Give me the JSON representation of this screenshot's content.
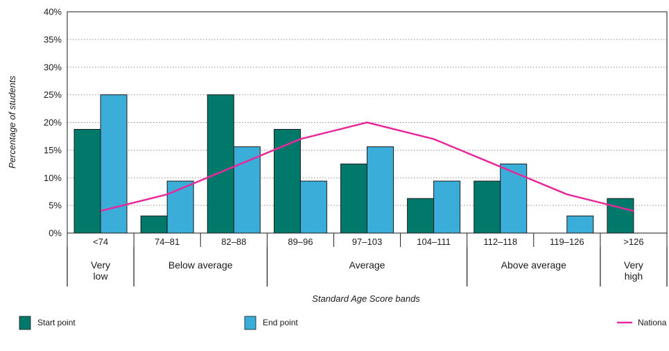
{
  "chart_data": {
    "type": "bar",
    "ylabel": "Percentage of students",
    "xlabel": "Standard Age Score bands",
    "ylim": [
      0,
      40
    ],
    "y_ticks": [
      "0%",
      "5%",
      "10%",
      "15%",
      "20%",
      "25%",
      "30%",
      "35%",
      "40%"
    ],
    "y_tick_values": [
      0,
      5,
      10,
      15,
      20,
      25,
      30,
      35,
      40
    ],
    "grid": true,
    "categories": [
      "<74",
      "74–81",
      "82–88",
      "89–96",
      "97–103",
      "104–111",
      "112–118",
      "119–126",
      ">126"
    ],
    "band_groups": [
      {
        "lines": [
          "Very",
          "low"
        ],
        "start": 0,
        "end": 0
      },
      {
        "lines": [
          "Below average"
        ],
        "start": 1,
        "end": 2
      },
      {
        "lines": [
          "Average"
        ],
        "start": 3,
        "end": 5
      },
      {
        "lines": [
          "Above average"
        ],
        "start": 6,
        "end": 7
      },
      {
        "lines": [
          "Very",
          "high"
        ],
        "start": 8,
        "end": 8
      }
    ],
    "series": [
      {
        "name": "Start point",
        "kind": "bar",
        "color": "#00796b",
        "values": [
          18.75,
          3.1,
          25,
          18.75,
          12.5,
          6.25,
          9.4,
          0,
          6.25
        ]
      },
      {
        "name": "End point",
        "kind": "bar",
        "color": "#3aaed8",
        "values": [
          25,
          9.4,
          15.6,
          9.4,
          15.6,
          9.4,
          12.5,
          3.1,
          0
        ]
      },
      {
        "name": "Nationa",
        "kind": "line",
        "color": "#e8289a",
        "values": [
          4,
          7,
          12,
          17,
          20,
          17,
          12,
          7,
          4
        ]
      }
    ],
    "legend_placement": "bottom"
  }
}
